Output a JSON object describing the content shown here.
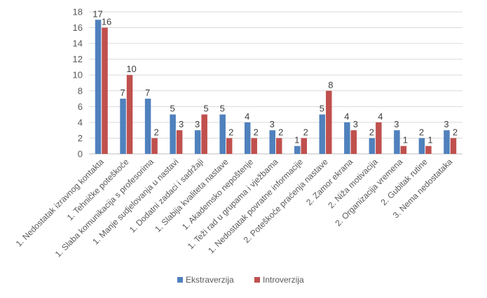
{
  "chart_data": {
    "type": "bar",
    "title": "",
    "xlabel": "",
    "ylabel": "",
    "ylim": [
      0,
      18
    ],
    "yticks": [
      0,
      2,
      4,
      6,
      8,
      10,
      12,
      14,
      16,
      18
    ],
    "grid": true,
    "legend_position": "bottom",
    "categories": [
      "1. Nedostatak izravnog kontakta",
      "1. Tehničke poteškoće",
      "1. Slaba komunikacija s profesorima",
      "1. Manje sudjelovanja u nastavi",
      "1. Dodatni zadaci i sadržaji",
      "1. Slabija kvaliteta nastave",
      "1. Akademsko nepoštenje",
      "1. Teži rad u grupama i vježbama",
      "1. Nedostatak povratne informacije",
      "2. Poteškoće praćenja nastave",
      "2. Zamor ekrana",
      "2. Niža motivacija",
      "2. Organizacija vremena",
      "2. Gubitak rutine",
      "3. Nema nedostataka"
    ],
    "series": [
      {
        "name": "Ekstraverzija",
        "color": "#4F81BD",
        "values": [
          17,
          7,
          7,
          5,
          3,
          5,
          4,
          3,
          1,
          5,
          4,
          2,
          3,
          2,
          3
        ]
      },
      {
        "name": "Introverzija",
        "color": "#C0504D",
        "values": [
          16,
          10,
          2,
          3,
          5,
          2,
          2,
          2,
          2,
          8,
          3,
          4,
          1,
          1,
          2
        ]
      }
    ]
  }
}
